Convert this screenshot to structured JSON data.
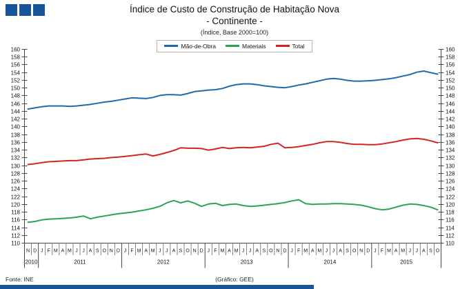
{
  "header": {
    "title": "Índice de Custo de Construção de Habitação Nova",
    "region": "- Continente -",
    "note": "(Índice,  Base 2000=100)"
  },
  "footer": {
    "source": "Fonte: INE",
    "credit": "(Gráfico:  GEE)"
  },
  "colors": {
    "accent_navy": "#17549a",
    "axis": "#444444",
    "text": "#111111"
  },
  "chart_data": {
    "type": "line",
    "title": "Índice de Custo de Construção de Habitação Nova",
    "subtitle": "- Continente -",
    "note": "(Índice, Base 2000=100)",
    "ylabel": "",
    "xlabel": "",
    "ylim": [
      110,
      160
    ],
    "ytick_step": 2,
    "grid": false,
    "legend_position": "top-center",
    "dual_y_axis_labels": true,
    "x_months": [
      "N",
      "D",
      "J",
      "F",
      "M",
      "A",
      "M",
      "J",
      "J",
      "A",
      "S",
      "O",
      "N",
      "D",
      "J",
      "F",
      "M",
      "A",
      "M",
      "J",
      "J",
      "A",
      "S",
      "O",
      "N",
      "D",
      "J",
      "F",
      "M",
      "A",
      "M",
      "J",
      "J",
      "A",
      "S",
      "O",
      "N",
      "D",
      "J",
      "F",
      "M",
      "A",
      "M",
      "J",
      "J",
      "A",
      "S",
      "O",
      "N",
      "D",
      "J",
      "F",
      "M",
      "A",
      "M",
      "J",
      "J",
      "A",
      "S",
      "O"
    ],
    "x_years": [
      {
        "label": "2010",
        "start": 0,
        "count": 2
      },
      {
        "label": "2011",
        "start": 2,
        "count": 12
      },
      {
        "label": "2012",
        "start": 14,
        "count": 12
      },
      {
        "label": "2013",
        "start": 26,
        "count": 12
      },
      {
        "label": "2014",
        "start": 38,
        "count": 12
      },
      {
        "label": "2015",
        "start": 50,
        "count": 10
      }
    ],
    "series": [
      {
        "name": "Mão-de-Obra",
        "color": "#1b6aae",
        "values": [
          144.5,
          144.8,
          145.1,
          145.3,
          145.3,
          145.3,
          145.2,
          145.3,
          145.5,
          145.7,
          146.0,
          146.3,
          146.5,
          146.8,
          147.1,
          147.4,
          147.3,
          147.2,
          147.5,
          148.0,
          148.2,
          148.2,
          148.1,
          148.5,
          149.0,
          149.2,
          149.4,
          149.5,
          149.8,
          150.4,
          150.8,
          151.0,
          151.0,
          150.8,
          150.5,
          150.3,
          150.1,
          150.0,
          150.3,
          150.7,
          151.0,
          151.4,
          151.8,
          152.2,
          152.4,
          152.2,
          151.9,
          151.7,
          151.7,
          151.8,
          151.9,
          152.1,
          152.3,
          152.6,
          153.0,
          153.4,
          154.0,
          154.3,
          153.9,
          153.5
        ]
      },
      {
        "name": "Materiais",
        "color": "#2ba356",
        "values": [
          115.3,
          115.5,
          115.9,
          116.1,
          116.2,
          116.3,
          116.4,
          116.6,
          116.9,
          116.2,
          116.6,
          116.9,
          117.2,
          117.5,
          117.7,
          117.9,
          118.2,
          118.5,
          118.9,
          119.4,
          120.3,
          120.9,
          120.3,
          120.8,
          120.2,
          119.4,
          120.0,
          120.2,
          119.6,
          119.9,
          120.0,
          119.6,
          119.4,
          119.5,
          119.7,
          119.9,
          120.1,
          120.4,
          120.8,
          121.1,
          120.1,
          119.9,
          120.0,
          120.0,
          120.1,
          120.1,
          120.0,
          119.9,
          119.7,
          119.3,
          118.8,
          118.5,
          118.7,
          119.2,
          119.7,
          120.0,
          119.9,
          119.6,
          119.2,
          118.5
        ]
      },
      {
        "name": "Total",
        "color": "#d42322",
        "values": [
          130.2,
          130.4,
          130.7,
          130.9,
          131.0,
          131.1,
          131.2,
          131.2,
          131.4,
          131.6,
          131.7,
          131.8,
          132.0,
          132.1,
          132.3,
          132.5,
          132.7,
          132.9,
          132.4,
          132.8,
          133.3,
          133.8,
          134.5,
          134.4,
          134.4,
          134.3,
          133.9,
          134.2,
          134.6,
          134.3,
          134.5,
          134.6,
          134.5,
          134.7,
          134.9,
          135.4,
          135.7,
          134.5,
          134.6,
          134.8,
          135.1,
          135.4,
          135.8,
          136.1,
          136.1,
          135.9,
          135.6,
          135.4,
          135.4,
          135.3,
          135.3,
          135.5,
          135.8,
          136.1,
          136.5,
          136.8,
          136.9,
          136.7,
          136.3,
          135.8
        ]
      }
    ]
  }
}
